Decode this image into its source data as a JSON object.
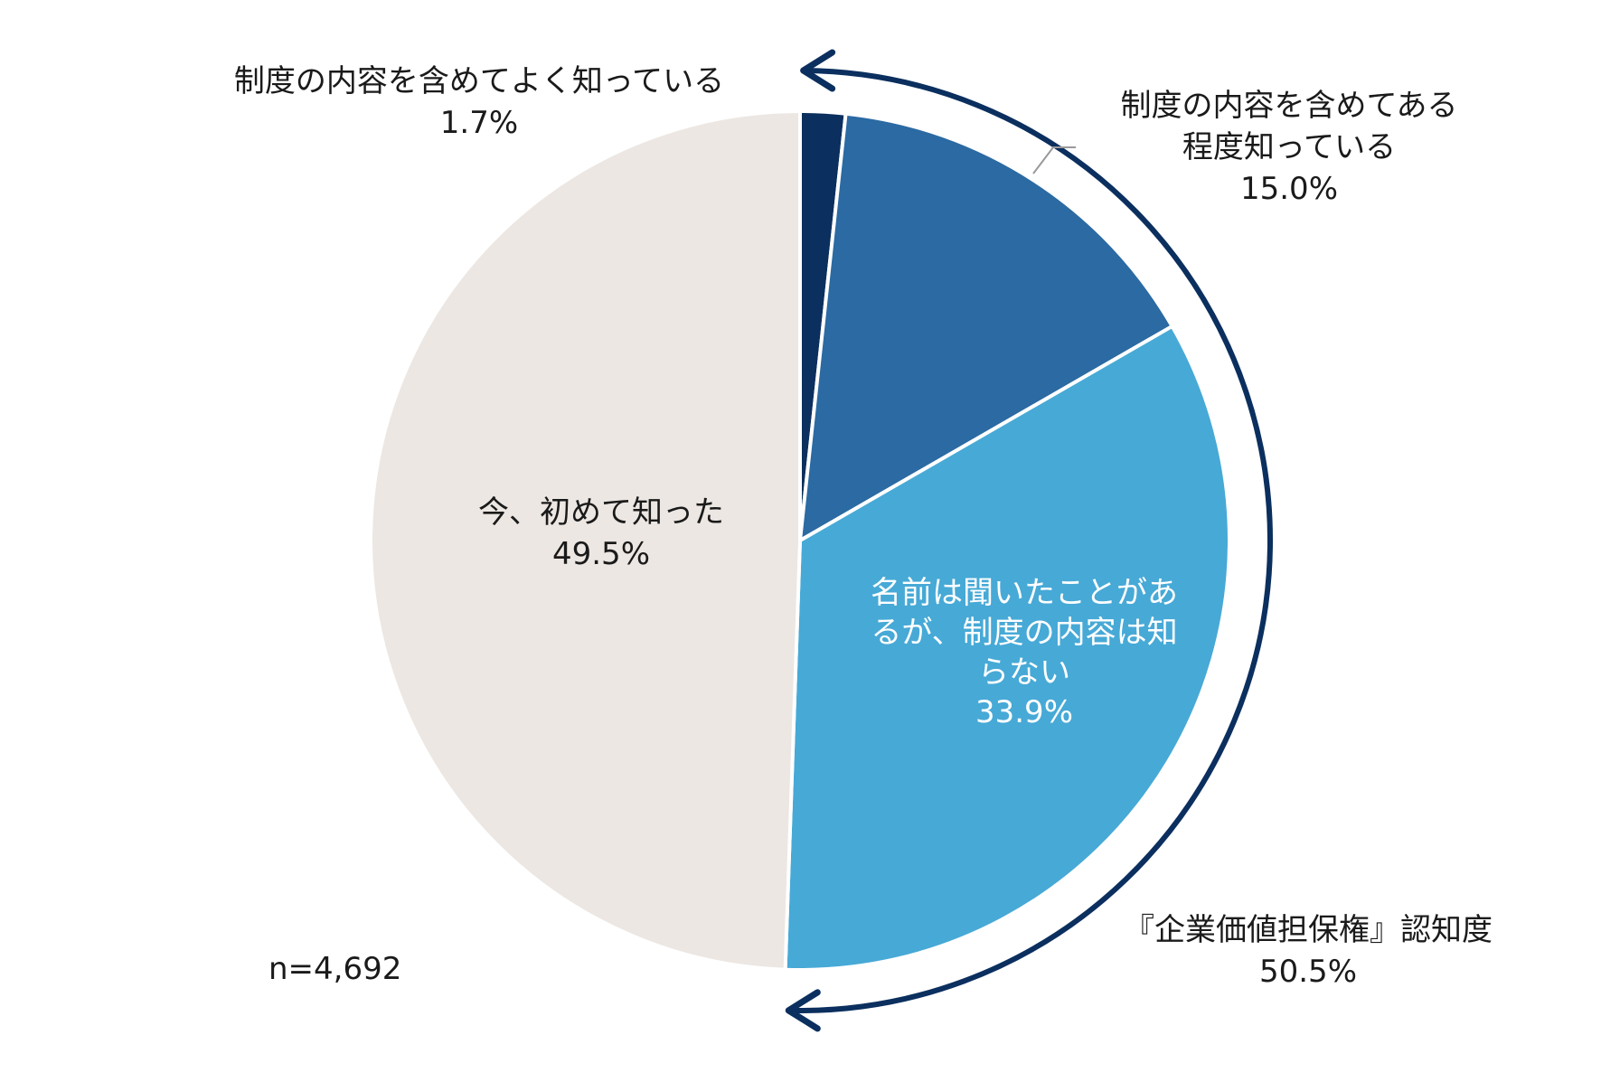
{
  "chart_data": {
    "type": "pie",
    "title": "",
    "sample_size_label": "n=4,692",
    "slices": [
      {
        "label": "制度の内容を含めてよく知っている",
        "label_lines": [
          "制度の内容を含めてよく知っている"
        ],
        "value": 1.7,
        "value_label": "1.7%",
        "color": "#0b2f5e",
        "text_color": "#1a1a1a"
      },
      {
        "label": "制度の内容を含めてある程度知っている",
        "label_lines": [
          "制度の内容を含めてある",
          "程度知っている"
        ],
        "value": 15.0,
        "value_label": "15.0%",
        "color": "#2b6aa3",
        "text_color": "#1a1a1a"
      },
      {
        "label": "名前は聞いたことがあるが、制度の内容は知らない",
        "label_lines": [
          "名前は聞いたことがあ",
          "るが、制度の内容は知",
          "らない"
        ],
        "value": 33.9,
        "value_label": "33.9%",
        "color": "#47a9d6",
        "text_color": "#ffffff"
      },
      {
        "label": "今、初めて知った",
        "label_lines": [
          "今、初めて知った"
        ],
        "value": 49.5,
        "value_label": "49.5%",
        "color": "#ece7e3",
        "text_color": "#1a1a1a"
      }
    ],
    "bracket": {
      "label": "『企業価値担保権』認知度",
      "value": 50.5,
      "value_label": "50.5%",
      "color": "#0b2f5e"
    }
  }
}
